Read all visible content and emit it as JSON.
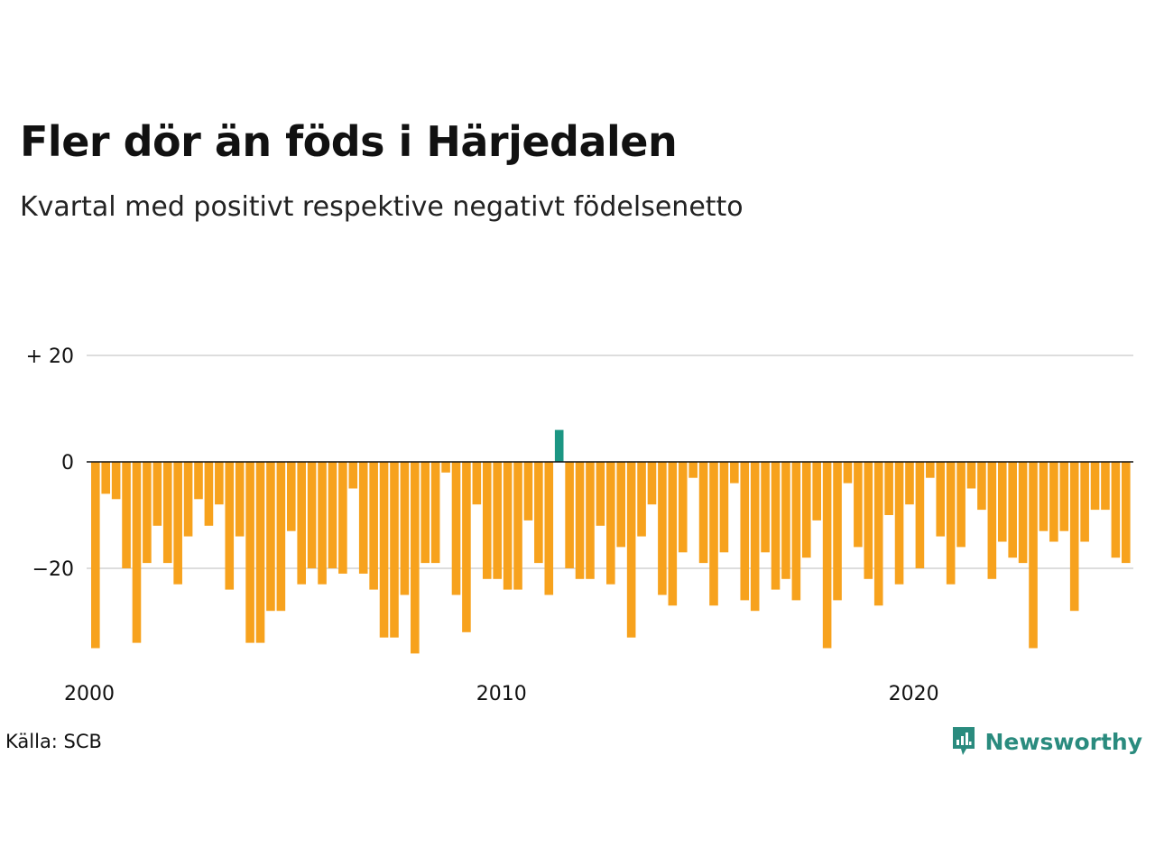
{
  "title": "Fler dör än föds i Härjedalen",
  "subtitle": "Kvartal med positivt respektive negativt födelsenetto",
  "source": "Källa: SCB",
  "brand": {
    "name": "Newsworthy",
    "icon": "newsworthy-logo-icon",
    "color": "#2a8b7e"
  },
  "colors": {
    "positive": "#1c9683",
    "negative": "#f7a21d",
    "grid": "#dddddd",
    "zero_line": "#111111"
  },
  "chart_data": {
    "type": "bar",
    "title": "",
    "xlabel": "",
    "ylabel": "",
    "ylim": [
      -36,
      20
    ],
    "y_ticks": [
      {
        "value": 20,
        "label": "+ 20"
      },
      {
        "value": 0,
        "label": "0"
      },
      {
        "value": -20,
        "label": "−20"
      }
    ],
    "x_ticks": [
      {
        "value": 2000,
        "label": "2000"
      },
      {
        "value": 2010,
        "label": "2010"
      },
      {
        "value": 2020,
        "label": "2020"
      }
    ],
    "grid": true,
    "legend": "none",
    "start_year": 2000,
    "start_quarter": 1,
    "values": [
      -35,
      -6,
      -7,
      -20,
      -34,
      -19,
      -12,
      -19,
      -23,
      -14,
      -7,
      -12,
      -8,
      -24,
      -14,
      -34,
      -34,
      -28,
      -28,
      -13,
      -23,
      -20,
      -23,
      -20,
      -21,
      -5,
      -21,
      -24,
      -33,
      -33,
      -25,
      -36,
      -19,
      -19,
      -2,
      -25,
      -32,
      -8,
      -22,
      -22,
      -24,
      -24,
      -11,
      -19,
      -25,
      6,
      -20,
      -22,
      -22,
      -12,
      -23,
      -16,
      -33,
      -14,
      -8,
      -25,
      -27,
      -17,
      -3,
      -19,
      -27,
      -17,
      -4,
      -26,
      -28,
      -17,
      -24,
      -22,
      -26,
      -18,
      -11,
      -35,
      -26,
      -4,
      -16,
      -22,
      -27,
      -10,
      -23,
      -8,
      -20,
      -3,
      -14,
      -23,
      -16,
      -5,
      -9,
      -22,
      -15,
      -18,
      -19,
      -35,
      -13,
      -15,
      -13,
      -28,
      -15,
      -9,
      -9,
      -18,
      -19
    ]
  }
}
